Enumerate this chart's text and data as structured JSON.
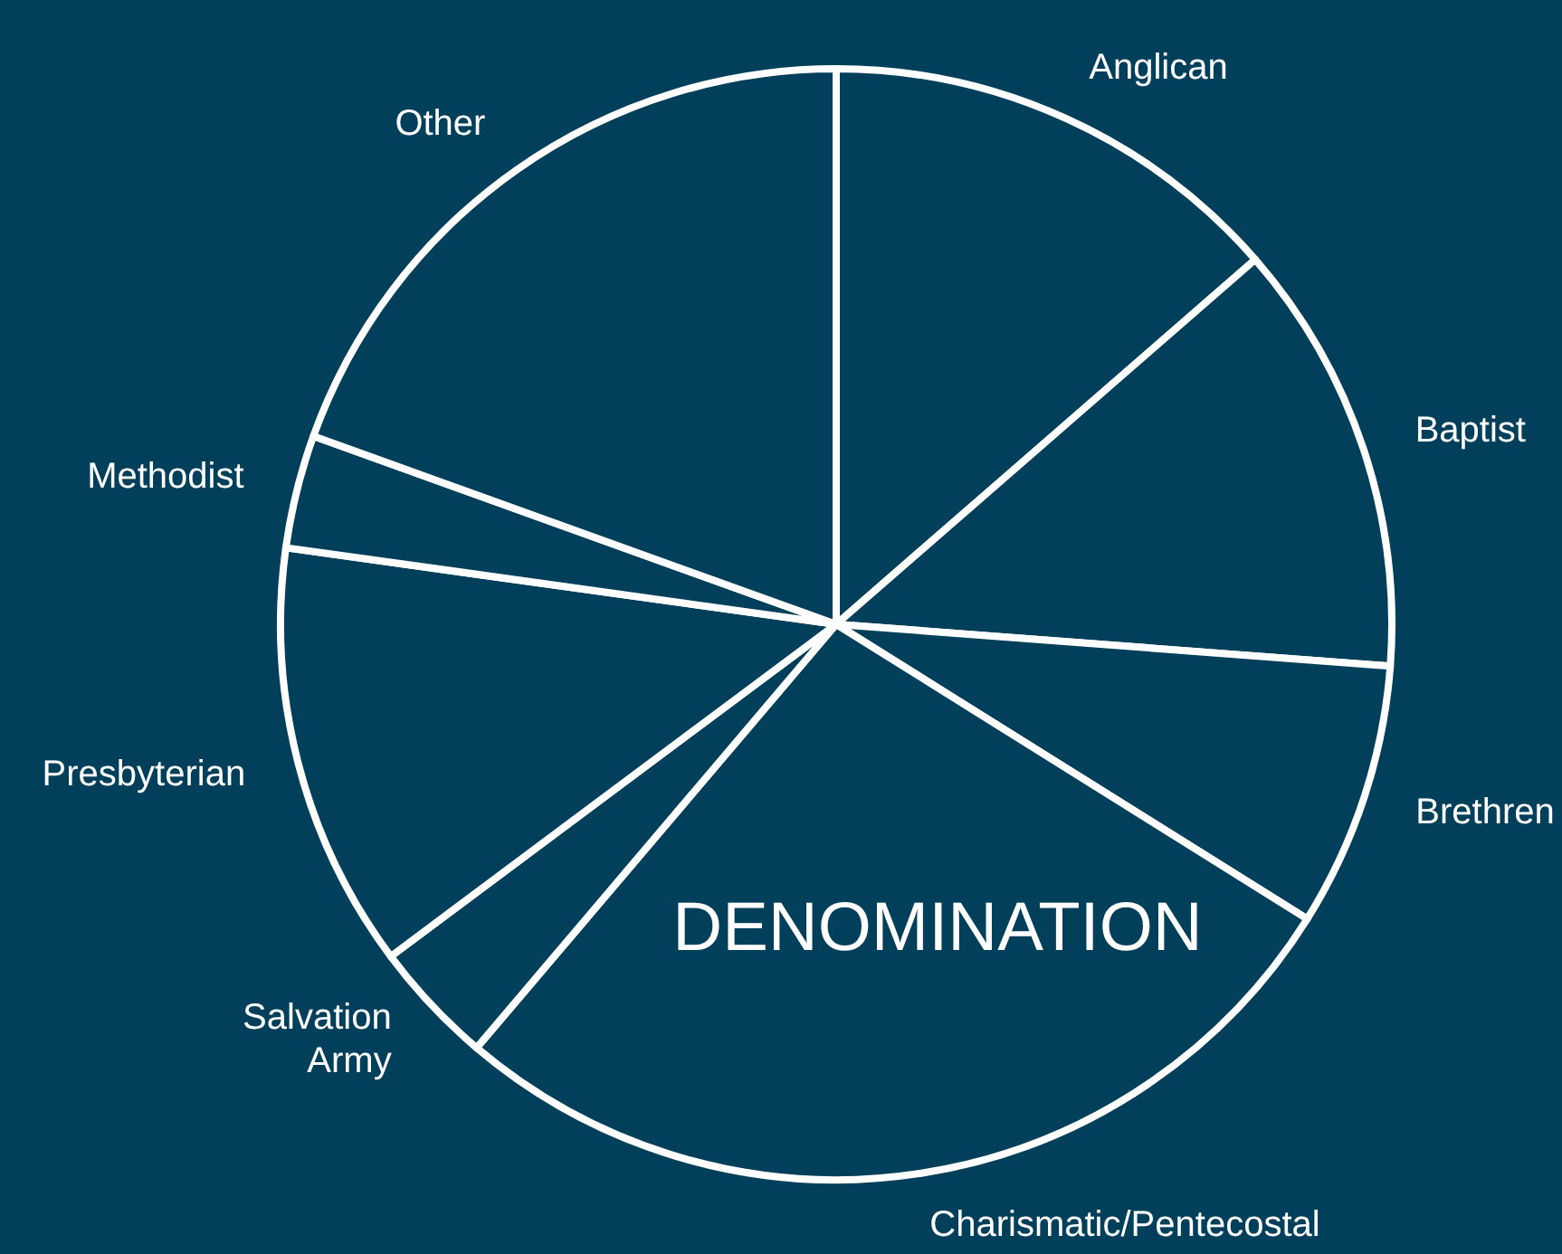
{
  "chart_data": {
    "type": "pie",
    "title": "DENOMINATION",
    "categories": [
      "Anglican",
      "Baptist",
      "Brethren",
      "Charismatic/Pentecostal",
      "Salvation Army",
      "Presbyterian",
      "Methodist",
      "Other"
    ],
    "values": [
      13.6,
      12.6,
      7.7,
      27.3,
      3.6,
      12.4,
      3.3,
      19.5
    ],
    "colors": [
      "#023f5a",
      "#023f5a",
      "#023f5a",
      "#023f5a",
      "#023f5a",
      "#023f5a",
      "#023f5a",
      "#023f5a"
    ]
  }
}
